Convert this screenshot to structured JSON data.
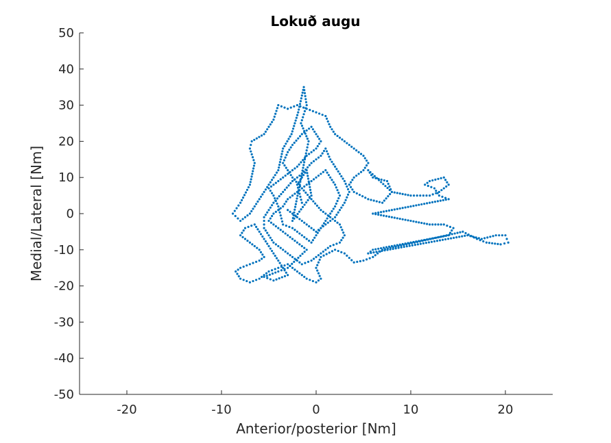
{
  "chart_data": {
    "type": "scatter",
    "title": "Lokuð augu",
    "xlabel": "Anterior/posterior [Nm]",
    "ylabel": "Medial/Lateral [Nm]",
    "xlim": [
      -25,
      25
    ],
    "ylim": [
      -50,
      50
    ],
    "xticks": [
      -20,
      -10,
      0,
      10,
      20
    ],
    "yticks": [
      -50,
      -40,
      -30,
      -20,
      -10,
      0,
      10,
      20,
      30,
      40,
      50
    ],
    "xtick_labels": [
      "-20",
      "-10",
      "0",
      "10",
      "20"
    ],
    "ytick_labels": [
      "-50",
      "-40",
      "-30",
      "-20",
      "-10",
      "0",
      "10",
      "20",
      "30",
      "40",
      "50"
    ],
    "marker_color": "#0072BD",
    "grid": false,
    "legend": false,
    "series": [
      {
        "approximate": true,
        "points": [
          [
            -1.5,
            3
          ],
          [
            -2.0,
            8
          ],
          [
            -1.0,
            12
          ],
          [
            -0.5,
            5
          ],
          [
            -2.5,
            -2
          ],
          [
            -1.2,
            15
          ],
          [
            -0.8,
            20
          ],
          [
            -1.6,
            25
          ],
          [
            -1.0,
            30
          ],
          [
            -1.3,
            35
          ],
          [
            -1.9,
            28
          ],
          [
            -2.6,
            22
          ],
          [
            -3.5,
            18
          ],
          [
            -4.0,
            12
          ],
          [
            -5.0,
            8
          ],
          [
            -6.0,
            4
          ],
          [
            -7.0,
            0
          ],
          [
            -8.0,
            -2
          ],
          [
            -8.8,
            0
          ],
          [
            -8.0,
            3
          ],
          [
            -7.0,
            8
          ],
          [
            -6.5,
            14
          ],
          [
            -7.0,
            18
          ],
          [
            -6.8,
            20
          ],
          [
            -5.5,
            22
          ],
          [
            -4.5,
            26
          ],
          [
            -4.0,
            30
          ],
          [
            -3.0,
            29
          ],
          [
            -2.0,
            30
          ],
          [
            -1.0,
            29
          ],
          [
            0.0,
            28
          ],
          [
            1.0,
            27
          ],
          [
            1.5,
            24
          ],
          [
            2.0,
            22
          ],
          [
            3.0,
            20
          ],
          [
            4.0,
            18
          ],
          [
            5.0,
            16
          ],
          [
            5.5,
            14
          ],
          [
            5.0,
            12
          ],
          [
            4.0,
            10
          ],
          [
            3.5,
            8
          ],
          [
            4.0,
            6
          ],
          [
            5.5,
            4
          ],
          [
            7.0,
            3
          ],
          [
            8.0,
            6
          ],
          [
            7.5,
            9
          ],
          [
            6.0,
            10
          ],
          [
            5.5,
            12
          ],
          [
            8.0,
            6
          ],
          [
            10.0,
            5
          ],
          [
            12.0,
            5
          ],
          [
            13.0,
            6
          ],
          [
            14.0,
            8
          ],
          [
            13.5,
            10
          ],
          [
            12.0,
            9
          ],
          [
            11.5,
            8
          ],
          [
            12.5,
            7
          ],
          [
            13.0,
            5
          ],
          [
            14.0,
            4
          ],
          [
            6.0,
            0
          ],
          [
            8.0,
            -1
          ],
          [
            10.0,
            -2
          ],
          [
            12.0,
            -3
          ],
          [
            13.5,
            -3
          ],
          [
            14.5,
            -4
          ],
          [
            14.0,
            -6
          ],
          [
            12.0,
            -7
          ],
          [
            10.0,
            -8
          ],
          [
            8.0,
            -9
          ],
          [
            6.0,
            -10
          ],
          [
            5.5,
            -11
          ],
          [
            16.0,
            -6
          ],
          [
            17.5,
            -7
          ],
          [
            19.0,
            -6
          ],
          [
            20.0,
            -6
          ],
          [
            20.3,
            -8
          ],
          [
            19.5,
            -8.5
          ],
          [
            18.0,
            -8
          ],
          [
            17.0,
            -7
          ],
          [
            15.5,
            -5
          ],
          [
            7.0,
            -10
          ],
          [
            6.0,
            -12
          ],
          [
            5.0,
            -13
          ],
          [
            4.0,
            -13.5
          ],
          [
            3.0,
            -11
          ],
          [
            2.0,
            -10
          ],
          [
            0.5,
            -12
          ],
          [
            0.0,
            -15
          ],
          [
            0.5,
            -18
          ],
          [
            0.0,
            -19
          ],
          [
            -1.0,
            -18
          ],
          [
            -2.0,
            -16
          ],
          [
            -3.0,
            -14
          ],
          [
            -4.0,
            -15
          ],
          [
            -5.0,
            -16
          ],
          [
            -6.0,
            -18
          ],
          [
            -7.0,
            -19
          ],
          [
            -8.0,
            -18
          ],
          [
            -8.5,
            -16
          ],
          [
            -8.0,
            -15
          ],
          [
            -7.0,
            -14
          ],
          [
            -6.0,
            -13
          ],
          [
            -5.5,
            -12
          ],
          [
            -6.0,
            -10
          ],
          [
            -7.0,
            -8
          ],
          [
            -8.0,
            -6
          ],
          [
            -7.5,
            -4
          ],
          [
            -6.5,
            -3
          ],
          [
            -6.0,
            -5
          ],
          [
            -5.5,
            -7
          ],
          [
            -3.0,
            -17
          ],
          [
            -4.5,
            -18.5
          ],
          [
            -5.5,
            -17.5
          ],
          [
            -4.0,
            -16
          ],
          [
            -3.0,
            -15
          ],
          [
            -1.0,
            -10
          ],
          [
            -2.0,
            -8
          ],
          [
            -3.0,
            -6
          ],
          [
            -4.0,
            -4
          ],
          [
            -5.0,
            -2
          ],
          [
            -4.5,
            0
          ],
          [
            -3.5,
            2
          ],
          [
            -3.0,
            4
          ],
          [
            -2.0,
            6
          ],
          [
            -1.0,
            8
          ],
          [
            0.0,
            10
          ],
          [
            1.0,
            12
          ],
          [
            1.5,
            10
          ],
          [
            2.0,
            8
          ],
          [
            2.5,
            5
          ],
          [
            2.0,
            2
          ],
          [
            1.5,
            0
          ],
          [
            1.0,
            -2
          ],
          [
            0.5,
            -4
          ],
          [
            0.0,
            -6
          ],
          [
            -0.5,
            -8
          ],
          [
            -1.5,
            -6
          ],
          [
            -2.5,
            -4
          ],
          [
            -3.5,
            -3
          ],
          [
            -4.0,
            2
          ],
          [
            -4.5,
            5
          ],
          [
            -5.0,
            7
          ],
          [
            -4.0,
            9
          ],
          [
            -3.0,
            11
          ],
          [
            -2.0,
            13
          ],
          [
            -1.0,
            16
          ],
          [
            0.0,
            18
          ],
          [
            0.5,
            20
          ],
          [
            0.0,
            22
          ],
          [
            -0.5,
            24
          ],
          [
            -1.5,
            22
          ],
          [
            -2.5,
            19
          ],
          [
            -3.0,
            17
          ],
          [
            -3.5,
            14
          ],
          [
            -2.5,
            10
          ],
          [
            -1.5,
            7
          ],
          [
            -0.5,
            4
          ],
          [
            0.5,
            1
          ],
          [
            1.5,
            -1
          ],
          [
            2.5,
            -3
          ],
          [
            3.0,
            -6
          ],
          [
            2.5,
            -8
          ],
          [
            1.5,
            -9
          ],
          [
            0.5,
            -11
          ],
          [
            -0.5,
            -13
          ],
          [
            -1.5,
            -14
          ],
          [
            -2.5,
            -12
          ],
          [
            -3.5,
            -10
          ],
          [
            -4.5,
            -8
          ],
          [
            -5.0,
            -6
          ],
          [
            -5.5,
            -4
          ],
          [
            -5.5,
            -1
          ],
          [
            -5.0,
            1
          ],
          [
            -4.5,
            3
          ],
          [
            -3.5,
            6
          ],
          [
            -2.5,
            9
          ],
          [
            -1.5,
            11
          ],
          [
            -0.5,
            14
          ],
          [
            0.5,
            16
          ],
          [
            1.0,
            18
          ],
          [
            1.5,
            15
          ],
          [
            2.0,
            13
          ],
          [
            2.5,
            11
          ],
          [
            3.0,
            9
          ],
          [
            3.5,
            6
          ],
          [
            3.0,
            3
          ],
          [
            2.5,
            1
          ],
          [
            2.0,
            -1
          ],
          [
            1.0,
            -3
          ],
          [
            0.0,
            -5
          ],
          [
            -1.0,
            -3
          ],
          [
            -2.0,
            -1
          ],
          [
            -3.0,
            1
          ]
        ]
      }
    ]
  }
}
